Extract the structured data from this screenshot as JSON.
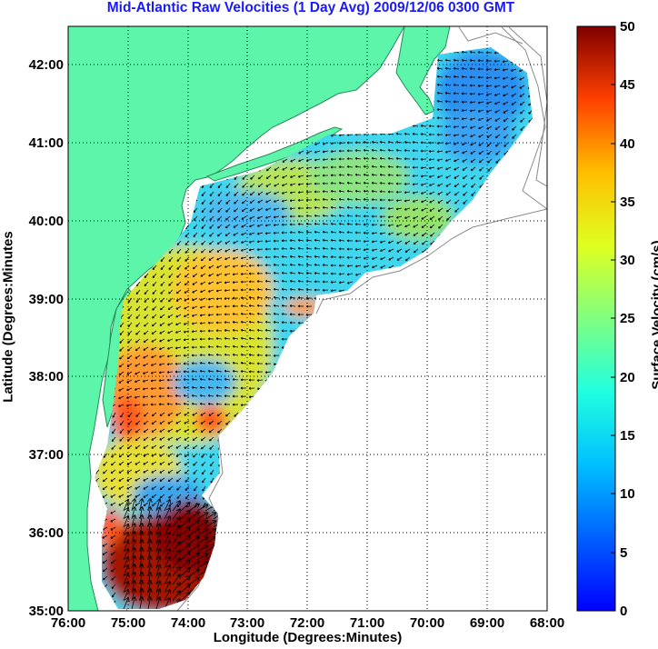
{
  "title": "Mid-Atlantic Raw Velocities (1 Day Avg) 2009/12/06 0300 GMT",
  "xlabel": "Longitude (Degrees:Minutes)",
  "ylabel": "Latitude (Degrees:Minutes",
  "colorbar": {
    "label": "Surface Velocity (cm/s)",
    "min": 0,
    "max": 50,
    "ticks": [
      0,
      5,
      10,
      15,
      20,
      25,
      30,
      35,
      40,
      45,
      50
    ],
    "tick_labels": [
      "0",
      "5",
      "10",
      "15",
      "20",
      "25",
      "30",
      "35",
      "40",
      "45",
      "50"
    ],
    "colormap": "jet"
  },
  "map": {
    "lon_range": [
      -76,
      -68
    ],
    "lat_range": [
      35,
      42.5
    ],
    "x_ticks": [
      -76,
      -75,
      -74,
      -73,
      -72,
      -71,
      -70,
      -69,
      -68
    ],
    "x_tick_labels": [
      "76:00",
      "75:00",
      "74:00",
      "73:00",
      "72:00",
      "71:00",
      "70:00",
      "69:00",
      "68:00"
    ],
    "y_ticks": [
      35,
      36,
      37,
      38,
      39,
      40,
      41,
      42
    ],
    "y_tick_labels": [
      "35:00",
      "36:00",
      "37:00",
      "38:00",
      "39:00",
      "40:00",
      "41:00",
      "42:00"
    ],
    "grid": "dotted",
    "land_color": "#5cf5aa",
    "water_color": "#ffffff"
  }
}
